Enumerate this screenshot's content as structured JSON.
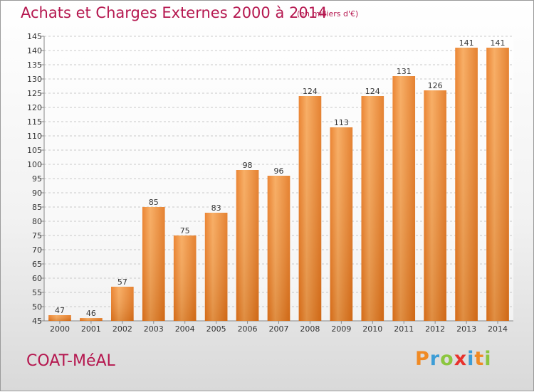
{
  "chart_data": {
    "type": "bar",
    "title": "Achats et Charges Externes 2000 à 2014",
    "subtitle": "(en milliers d'€)",
    "xlabel": "",
    "ylabel": "",
    "categories": [
      "2000",
      "2001",
      "2002",
      "2003",
      "2004",
      "2005",
      "2006",
      "2007",
      "2008",
      "2009",
      "2010",
      "2011",
      "2012",
      "2013",
      "2014"
    ],
    "values": [
      47,
      46,
      57,
      85,
      75,
      83,
      98,
      96,
      124,
      113,
      124,
      131,
      126,
      141,
      141
    ],
    "data_labels": [
      "47",
      "46",
      "57",
      "85",
      "75",
      "83",
      "98",
      "96",
      "124",
      "113",
      "124",
      "131",
      "126",
      "141",
      "141"
    ],
    "ylim": [
      45,
      145
    ],
    "yticks": [
      45,
      50,
      55,
      60,
      65,
      70,
      75,
      80,
      85,
      90,
      95,
      100,
      105,
      110,
      115,
      120,
      125,
      130,
      135,
      140,
      145
    ],
    "grid": true,
    "legend": "none",
    "bar_color": "#f0892a",
    "title_color": "#b5174f"
  },
  "footer": {
    "commune": "COAT-MéAL",
    "brand_letters": [
      "P",
      "r",
      "o",
      "x",
      "i",
      "t",
      "i"
    ],
    "brand_colors": [
      "#f08a24",
      "#3d9dd6",
      "#8cc63f",
      "#e8322d",
      "#3d9dd6",
      "#f08a24",
      "#8cc63f"
    ]
  }
}
